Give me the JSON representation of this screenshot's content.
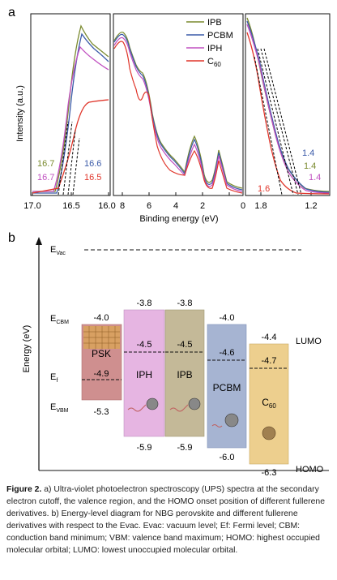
{
  "panel_a": {
    "label": "a",
    "ylabel": "Intensity (a.u.)",
    "xlabel": "Binding energy (eV)",
    "legend": [
      {
        "name": "IPB",
        "color": "#7a8a2e"
      },
      {
        "name": "PCBM",
        "color": "#3a5aa8"
      },
      {
        "name": "IPH",
        "color": "#c050c0"
      },
      {
        "name": "C60",
        "color": "#e0352a"
      }
    ],
    "left": {
      "xticks": [
        "17.0",
        "16.5",
        "16.0"
      ],
      "xrange": [
        17.0,
        16.0
      ],
      "cutoffs": [
        {
          "text": "16.7",
          "color": "#7a8a2e"
        },
        {
          "text": "16.6",
          "color": "#3a5aa8"
        },
        {
          "text": "16.7",
          "color": "#c050c0"
        },
        {
          "text": "16.5",
          "color": "#e0352a"
        }
      ]
    },
    "middle": {
      "xticks": [
        "8",
        "6",
        "4",
        "2",
        "0"
      ],
      "xrange": [
        9.0,
        0.0
      ]
    },
    "right": {
      "xticks": [
        "1.8",
        "1.2"
      ],
      "xrange": [
        2.0,
        1.0
      ],
      "onsets": [
        {
          "text": "1.4",
          "color": "#3a5aa8"
        },
        {
          "text": "1.4",
          "color": "#7a8a2e"
        },
        {
          "text": "1.6",
          "color": "#e0352a"
        },
        {
          "text": "1.4",
          "color": "#c050c0"
        }
      ]
    }
  },
  "panel_b": {
    "label": "b",
    "ylabel": "Energy (eV)",
    "evac": "E",
    "evac_sub": "Vac",
    "ecbm": "E",
    "ecbm_sub": "CBM",
    "ef": "E",
    "ef_sub": "f",
    "evbm": "E",
    "evbm_sub": "VBM",
    "lumo": "LUMO",
    "homo": "HOMO",
    "materials": [
      {
        "name": "PSK",
        "top": "-4.0",
        "mid": "-4.9",
        "bottom": "-5.3",
        "color": "#cf8f8f"
      },
      {
        "name": "IPH",
        "top": "-3.8",
        "mid": "-4.5",
        "bottom": "-5.9",
        "color": "#e6b5e2"
      },
      {
        "name": "IPB",
        "top": "-3.8",
        "mid": "-4.5",
        "bottom": "-5.9",
        "color": "#c4b998"
      },
      {
        "name": "PCBM",
        "top": "-4.0",
        "mid": "-4.6",
        "bottom": "-6.0",
        "color": "#a6b4d2"
      },
      {
        "name": "C",
        "name_sub": "60",
        "top": "-4.4",
        "mid": "-4.7",
        "bottom": "-6.3",
        "color": "#edcf8e"
      }
    ]
  },
  "caption": {
    "label": "Figure 2.",
    "text": "a) Ultra-violet photoelectron spectroscopy (UPS) spectra at the secondary electron cutoff, the valence region, and the HOMO onset position of different fullerene derivatives. b) Energy-level diagram for NBG perovskite and different fullerene derivatives with respect to the Evac. Evac: vacuum level; Ef: Fermi level; CBM: conduction band minimum; VBM: valence band maximum; HOMO: highest occupied molecular orbital; LUMO: lowest unoccupied molecular orbital."
  }
}
